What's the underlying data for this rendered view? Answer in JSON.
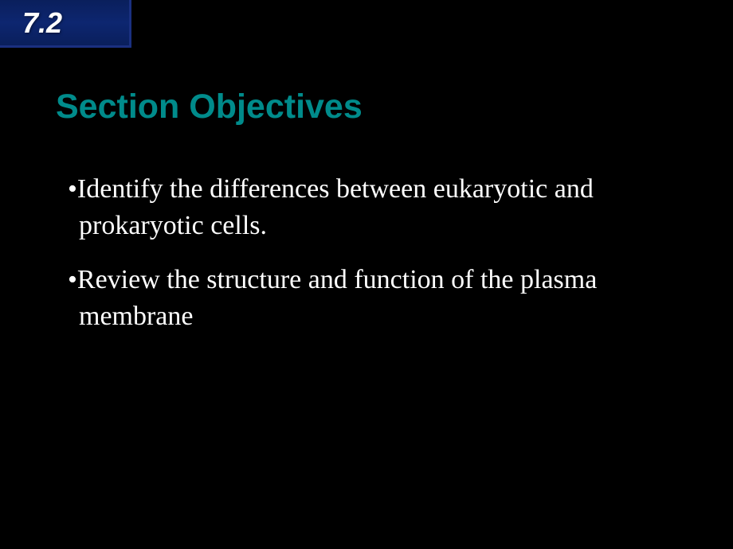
{
  "colors": {
    "background": "#000000",
    "tab_background": "#0d2670",
    "tab_border": "#1a3080",
    "section_number_text": "#ffffff",
    "title_text": "#008b8b",
    "body_text": "#ffffff"
  },
  "typography": {
    "section_number_fontsize": 36,
    "title_fontsize": 43,
    "body_fontsize": 34,
    "title_font": "Arial",
    "body_font": "Georgia"
  },
  "section_tab": {
    "number": "7.2"
  },
  "title": "Section Objectives",
  "objectives": [
    "Identify the differences between eukaryotic and prokaryotic cells.",
    "Review the structure and function of the plasma membrane"
  ],
  "bullet_char": "•"
}
